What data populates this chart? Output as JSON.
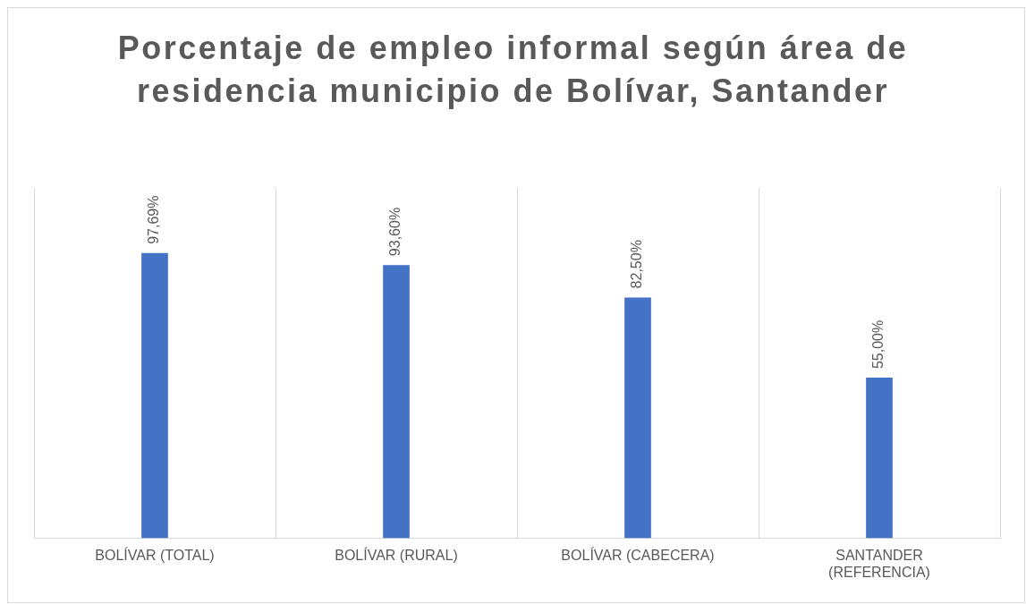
{
  "chart_data": {
    "type": "bar",
    "title": "Porcentaje de empleo informal según área de residencia municipio de Bolívar, Santander",
    "categories": [
      "BOLÍVAR (TOTAL)",
      "BOLÍVAR (RURAL)",
      "BOLÍVAR (CABECERA)",
      "SANTANDER (REFERENCIA)"
    ],
    "values": [
      97.69,
      93.6,
      82.5,
      55.0
    ],
    "value_labels": [
      "97,69%",
      "93,60%",
      "82,50%",
      "55,00%"
    ],
    "color": "#4472c4",
    "ylim": [
      0,
      120
    ],
    "grid": "x",
    "tick_labels": "x",
    "legend": false
  }
}
